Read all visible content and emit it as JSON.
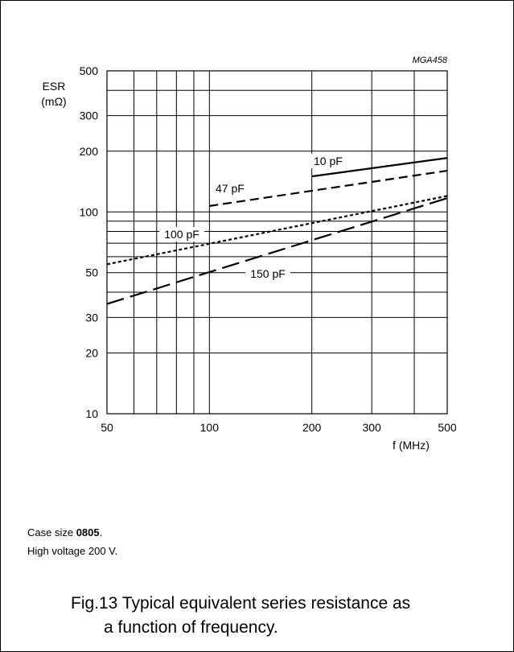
{
  "figure_id": "MGA458",
  "chart_data": {
    "type": "line",
    "x_scale": "log",
    "y_scale": "log",
    "xlim": [
      50,
      500
    ],
    "ylim": [
      10,
      500
    ],
    "xlabel": "f  (MHz)",
    "ylabel_line1": "ESR",
    "ylabel_line2": "(mΩ)",
    "x_ticks": [
      50,
      100,
      200,
      300,
      500
    ],
    "y_ticks": [
      10,
      20,
      30,
      50,
      100,
      200,
      300,
      500
    ],
    "x_minor_grid": [
      60,
      70,
      80,
      90,
      100,
      200,
      300,
      400
    ],
    "y_minor_grid": [
      20,
      30,
      40,
      50,
      60,
      70,
      80,
      90,
      100,
      200,
      300,
      400
    ],
    "grid": true,
    "series": [
      {
        "name": "10 pF",
        "dash": "solid",
        "x": [
          200,
          500
        ],
        "y": [
          150,
          185
        ]
      },
      {
        "name": "47 pF",
        "dash": "dashed",
        "x": [
          100,
          500
        ],
        "y": [
          107,
          160
        ]
      },
      {
        "name": "100 pF",
        "dash": "dotted",
        "x": [
          50,
          500
        ],
        "y": [
          55,
          120
        ]
      },
      {
        "name": "150 pF",
        "dash": "longdash",
        "x": [
          50,
          500
        ],
        "y": [
          35,
          117
        ]
      }
    ]
  },
  "notes": {
    "case_prefix": "Case size ",
    "case_value": "0805",
    "case_suffix": ".",
    "voltage": "High voltage 200 V."
  },
  "caption": {
    "line1": "Fig.13  Typical equivalent series resistance as",
    "line2": "a function of frequency."
  }
}
